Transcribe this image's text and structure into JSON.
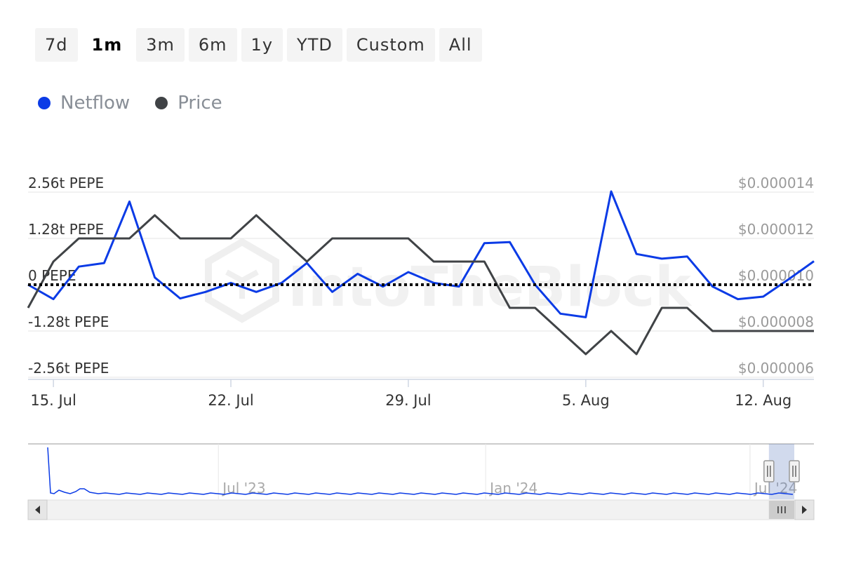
{
  "range_selector": {
    "buttons": [
      {
        "label": "7d",
        "active": false
      },
      {
        "label": "1m",
        "active": true
      },
      {
        "label": "3m",
        "active": false
      },
      {
        "label": "6m",
        "active": false
      },
      {
        "label": "1y",
        "active": false
      },
      {
        "label": "YTD",
        "active": false
      },
      {
        "label": "Custom",
        "active": false
      },
      {
        "label": "All",
        "active": false
      }
    ]
  },
  "legend": {
    "items": [
      {
        "name": "Netflow",
        "color": "#0b3be6"
      },
      {
        "name": "Price",
        "color": "#404346"
      }
    ]
  },
  "watermark": "IntoTheBlock",
  "chart_data": {
    "type": "line",
    "x_start": "2024-07-14",
    "x_end": "2024-08-14",
    "x_ticks": [
      {
        "date": "2024-07-15",
        "label": "15. Jul"
      },
      {
        "date": "2024-07-22",
        "label": "22. Jul"
      },
      {
        "date": "2024-07-29",
        "label": "29. Jul"
      },
      {
        "date": "2024-08-05",
        "label": "5. Aug"
      },
      {
        "date": "2024-08-12",
        "label": "12. Aug"
      }
    ],
    "y_left": {
      "unit": "PEPE",
      "range": [
        -2.56,
        2.56
      ],
      "ticks": [
        {
          "value": 2.56,
          "label": "2.56t PEPE"
        },
        {
          "value": 1.28,
          "label": "1.28t PEPE"
        },
        {
          "value": 0,
          "label": "0 PEPE"
        },
        {
          "value": -1.28,
          "label": "-1.28t PEPE"
        },
        {
          "value": -2.56,
          "label": "-2.56t PEPE"
        }
      ]
    },
    "y_right": {
      "range": [
        6e-06,
        1.4e-05
      ],
      "ticks": [
        {
          "value": 1.4e-05,
          "label": "$0.000014"
        },
        {
          "value": 1.2e-05,
          "label": "$0.000012"
        },
        {
          "value": 1e-05,
          "label": "$0.000010"
        },
        {
          "value": 8e-06,
          "label": "$0.000008"
        },
        {
          "value": 6e-06,
          "label": "$0.000006"
        }
      ]
    },
    "grid": true,
    "zero_line": "dotted",
    "series": [
      {
        "name": "Netflow",
        "axis": "left",
        "color": "#0b3be6",
        "points": [
          [
            "2024-07-14",
            0.0
          ],
          [
            "2024-07-15",
            -0.4
          ],
          [
            "2024-07-16",
            0.5
          ],
          [
            "2024-07-17",
            0.6
          ],
          [
            "2024-07-18",
            2.3
          ],
          [
            "2024-07-19",
            0.2
          ],
          [
            "2024-07-20",
            -0.38
          ],
          [
            "2024-07-21",
            -0.2
          ],
          [
            "2024-07-22",
            0.05
          ],
          [
            "2024-07-23",
            -0.2
          ],
          [
            "2024-07-24",
            0.05
          ],
          [
            "2024-07-25",
            0.6
          ],
          [
            "2024-07-26",
            -0.2
          ],
          [
            "2024-07-27",
            0.3
          ],
          [
            "2024-07-28",
            -0.05
          ],
          [
            "2024-07-29",
            0.35
          ],
          [
            "2024-07-30",
            0.05
          ],
          [
            "2024-07-31",
            -0.05
          ],
          [
            "2024-08-01",
            1.15
          ],
          [
            "2024-08-02",
            1.18
          ],
          [
            "2024-08-03",
            0.0
          ],
          [
            "2024-08-04",
            -0.8
          ],
          [
            "2024-08-05",
            -0.9
          ],
          [
            "2024-08-06",
            2.58
          ],
          [
            "2024-08-07",
            0.85
          ],
          [
            "2024-08-08",
            0.72
          ],
          [
            "2024-08-09",
            0.78
          ],
          [
            "2024-08-10",
            -0.05
          ],
          [
            "2024-08-11",
            -0.4
          ],
          [
            "2024-08-12",
            -0.33
          ],
          [
            "2024-08-13",
            0.15
          ],
          [
            "2024-08-14",
            0.65
          ]
        ]
      },
      {
        "name": "Price",
        "axis": "right",
        "color": "#404346",
        "points": [
          [
            "2024-07-14",
            9e-06
          ],
          [
            "2024-07-15",
            1.1e-05
          ],
          [
            "2024-07-16",
            1.2e-05
          ],
          [
            "2024-07-17",
            1.2e-05
          ],
          [
            "2024-07-18",
            1.2e-05
          ],
          [
            "2024-07-19",
            1.3e-05
          ],
          [
            "2024-07-20",
            1.2e-05
          ],
          [
            "2024-07-21",
            1.2e-05
          ],
          [
            "2024-07-22",
            1.2e-05
          ],
          [
            "2024-07-23",
            1.3e-05
          ],
          [
            "2024-07-24",
            1.2e-05
          ],
          [
            "2024-07-25",
            1.1e-05
          ],
          [
            "2024-07-26",
            1.2e-05
          ],
          [
            "2024-07-27",
            1.2e-05
          ],
          [
            "2024-07-28",
            1.2e-05
          ],
          [
            "2024-07-29",
            1.2e-05
          ],
          [
            "2024-07-30",
            1.1e-05
          ],
          [
            "2024-07-31",
            1.1e-05
          ],
          [
            "2024-08-01",
            1.1e-05
          ],
          [
            "2024-08-02",
            9e-06
          ],
          [
            "2024-08-03",
            9e-06
          ],
          [
            "2024-08-04",
            8e-06
          ],
          [
            "2024-08-05",
            7e-06
          ],
          [
            "2024-08-06",
            8e-06
          ],
          [
            "2024-08-07",
            7e-06
          ],
          [
            "2024-08-08",
            9e-06
          ],
          [
            "2024-08-09",
            9e-06
          ],
          [
            "2024-08-10",
            8e-06
          ],
          [
            "2024-08-11",
            8e-06
          ],
          [
            "2024-08-12",
            8e-06
          ],
          [
            "2024-08-13",
            8e-06
          ],
          [
            "2024-08-14",
            8e-06
          ]
        ]
      }
    ]
  },
  "navigator": {
    "x_start": "2023-02-20",
    "x_end": "2024-08-14",
    "labels": [
      {
        "date": "2023-07-01",
        "label": "Jul '23"
      },
      {
        "date": "2024-01-01",
        "label": "Jan '24"
      },
      {
        "date": "2024-07-01",
        "label": "Jul '24"
      }
    ],
    "selected_start": "2024-07-14",
    "selected_end": "2024-08-14",
    "line_color": "#0b3be6"
  }
}
